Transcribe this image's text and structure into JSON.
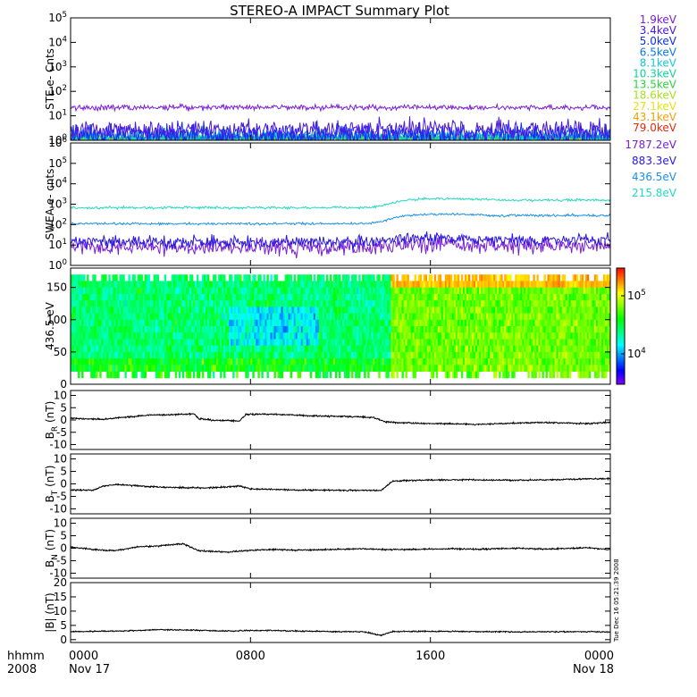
{
  "title": "STEREO-A IMPACT Summary Plot",
  "timestamp": "Tue Dec 16 05:21:39 2008",
  "xaxis": {
    "row1_label": "hhmm",
    "row2_label": "2008",
    "ticks": [
      {
        "hhmm": "0000",
        "date": "Nov 17",
        "frac": 0
      },
      {
        "hhmm": "0800",
        "date": "",
        "frac": 0.3333
      },
      {
        "hhmm": "1600",
        "date": "",
        "frac": 0.6667
      },
      {
        "hhmm": "0000",
        "date": "Nov 18",
        "frac": 1
      }
    ]
  },
  "colorbar": {
    "ticks": [
      {
        "label": "10^4",
        "value": 10000
      },
      {
        "label": "10^5",
        "value": 100000
      }
    ],
    "range": [
      3000,
      300000
    ]
  },
  "chart_data": [
    {
      "id": "ste",
      "type": "line",
      "ylabel": "STE e- Cnts",
      "yscale": "log",
      "ylim": [
        1,
        100000
      ],
      "yticks": [
        {
          "label": "10^0",
          "value": 1
        },
        {
          "label": "10^1",
          "value": 10
        },
        {
          "label": "10^2",
          "value": 100
        },
        {
          "label": "10^3",
          "value": 1000
        },
        {
          "label": "10^4",
          "value": 10000
        },
        {
          "label": "10^5",
          "value": 100000
        }
      ],
      "legend_position": "right",
      "series": [
        {
          "name": "1.9keV",
          "color": "#7a1ed8",
          "level": 22,
          "noise": 0.06
        },
        {
          "name": "3.4keV",
          "color": "#4a1ae0",
          "level": 2.5,
          "noise": 0.25
        },
        {
          "name": "5.0keV",
          "color": "#1030e8",
          "level": 1.6,
          "noise": 0.25
        },
        {
          "name": "6.5keV",
          "color": "#0a78e8",
          "level": 1.3,
          "noise": 0.2
        },
        {
          "name": "8.1keV",
          "color": "#16c8e0",
          "level": 1.1,
          "noise": 0.15
        },
        {
          "name": "10.3keV",
          "color": "#10d49a",
          "level": 1.05,
          "noise": 0.1
        },
        {
          "name": "13.5keV",
          "color": "#2cd43a",
          "level": 1.02,
          "noise": 0.08
        },
        {
          "name": "18.6keV",
          "color": "#a8e020",
          "level": 1.01,
          "noise": 0.05
        },
        {
          "name": "27.1keV",
          "color": "#e8e010",
          "level": 1.0,
          "noise": 0.03
        },
        {
          "name": "43.1keV",
          "color": "#f0a008",
          "level": 1.0,
          "noise": 0.02
        },
        {
          "name": "79.0keV",
          "color": "#e82808",
          "level": 1.0,
          "noise": 0.02
        }
      ]
    },
    {
      "id": "swea",
      "type": "line",
      "ylabel": "SWEA e- cnts",
      "yscale": "log",
      "ylim": [
        1,
        1000000
      ],
      "yticks": [
        {
          "label": "10^0",
          "value": 1
        },
        {
          "label": "10^1",
          "value": 10
        },
        {
          "label": "10^2",
          "value": 100
        },
        {
          "label": "10^3",
          "value": 1000
        },
        {
          "label": "10^4",
          "value": 10000
        },
        {
          "label": "10^5",
          "value": 100000
        },
        {
          "label": "10^6",
          "value": 1000000
        }
      ],
      "legend_position": "right",
      "series": [
        {
          "name": "1787.2eV",
          "color": "#7a1ed8",
          "before": 8,
          "after": 9,
          "noise": 0.35
        },
        {
          "name": "883.3eV",
          "color": "#2a18e0",
          "before": 14,
          "after": 18,
          "noise": 0.25
        },
        {
          "name": "436.5eV",
          "color": "#1a90e8",
          "before": 110,
          "after": 280,
          "noise": 0.05
        },
        {
          "name": "215.8eV",
          "color": "#22d8c0",
          "before": 680,
          "after": 1600,
          "noise": 0.05
        }
      ]
    },
    {
      "id": "pad",
      "type": "heatmap",
      "ylabel": "436.5 eV",
      "ylim": [
        0,
        180
      ],
      "yticks": [
        {
          "label": "0",
          "value": 0
        },
        {
          "label": "50",
          "value": 50
        },
        {
          "label": "100",
          "value": 100
        },
        {
          "label": "150",
          "value": 150
        }
      ],
      "zscale": "log",
      "zlim": [
        3000,
        300000
      ],
      "before": 25000,
      "after": 60000,
      "peak_after": 140000
    },
    {
      "id": "br",
      "type": "line",
      "ylabel": "BR (nT)",
      "ylim": [
        -12,
        12
      ],
      "yticks": [
        {
          "label": "10",
          "value": 10
        },
        {
          "label": "5",
          "value": 5
        },
        {
          "label": "0",
          "value": 0
        },
        {
          "label": "-5",
          "value": -5
        },
        {
          "label": "-10",
          "value": -10
        }
      ],
      "x": [
        0,
        0.5,
        1.5,
        2.5,
        3.5,
        4.5,
        5.5,
        5.7,
        6.5,
        7.0,
        7.5,
        7.8,
        8.5,
        9.5,
        10.5,
        11.5,
        12.5,
        13.5,
        14.0,
        15.0,
        16.0,
        17.0,
        18.0,
        19.0,
        20.0,
        21.0,
        22.0,
        23.0,
        24.0
      ],
      "values": [
        0.8,
        0.5,
        0.3,
        1.2,
        2.0,
        2.2,
        2.5,
        0.5,
        -0.2,
        -0.2,
        -0.5,
        2.3,
        2.4,
        2.2,
        1.8,
        1.5,
        1.4,
        1.0,
        -0.8,
        -1.2,
        -1.5,
        -1.5,
        -1.8,
        -1.5,
        -1.2,
        -1.0,
        -1.2,
        -1.5,
        -0.9
      ]
    },
    {
      "id": "bt",
      "type": "line",
      "ylabel": "BT (nT)",
      "ylim": [
        -12,
        12
      ],
      "yticks": [
        {
          "label": "10",
          "value": 10
        },
        {
          "label": "5",
          "value": 5
        },
        {
          "label": "0",
          "value": 0
        },
        {
          "label": "-5",
          "value": -5
        },
        {
          "label": "-10",
          "value": -10
        }
      ],
      "x": [
        0,
        1.0,
        1.5,
        2.0,
        3.0,
        4.0,
        5.0,
        6.0,
        7.0,
        7.5,
        8.0,
        9.0,
        10.0,
        11.0,
        12.0,
        13.0,
        13.8,
        14.3,
        15.0,
        16.0,
        17.0,
        18.0,
        19.0,
        20.0,
        21.0,
        22.0,
        23.0,
        24.0
      ],
      "values": [
        -2.5,
        -2.5,
        -0.8,
        -0.3,
        -0.8,
        -1.3,
        -1.5,
        -1.6,
        -1.2,
        -0.8,
        -2.0,
        -2.2,
        -2.5,
        -2.5,
        -2.6,
        -2.6,
        -2.6,
        1.0,
        1.4,
        1.5,
        1.6,
        1.6,
        1.5,
        1.5,
        1.6,
        1.8,
        2.0,
        2.1
      ]
    },
    {
      "id": "bn",
      "type": "line",
      "ylabel": "BN (nT)",
      "ylim": [
        -12,
        12
      ],
      "yticks": [
        {
          "label": "10",
          "value": 10
        },
        {
          "label": "5",
          "value": 5
        },
        {
          "label": "0",
          "value": 0
        },
        {
          "label": "-5",
          "value": -5
        },
        {
          "label": "-10",
          "value": -10
        }
      ],
      "x": [
        0,
        1.0,
        2.0,
        3.0,
        4.0,
        5.0,
        5.7,
        6.0,
        7.0,
        8.0,
        9.0,
        10.0,
        11.0,
        12.0,
        13.0,
        14.0,
        15.0,
        16.0,
        17.0,
        18.0,
        19.0,
        20.0,
        21.0,
        22.0,
        23.0,
        24.0
      ],
      "values": [
        0.5,
        -0.5,
        -1.0,
        0.5,
        1.0,
        1.8,
        -1.0,
        -1.2,
        -1.5,
        -0.8,
        -0.5,
        -0.8,
        -0.6,
        -0.4,
        -0.2,
        -0.5,
        -0.5,
        -0.3,
        -0.2,
        -0.4,
        -0.2,
        0.0,
        -0.3,
        -0.1,
        0.2,
        -0.6
      ]
    },
    {
      "id": "bmag",
      "type": "line",
      "ylabel": "|B| (nT)",
      "ylim": [
        -1,
        20
      ],
      "yticks": [
        {
          "label": "20",
          "value": 20
        },
        {
          "label": "15",
          "value": 15
        },
        {
          "label": "10",
          "value": 10
        },
        {
          "label": "5",
          "value": 5
        },
        {
          "label": "0",
          "value": 0
        }
      ],
      "x": [
        0,
        1.0,
        2.0,
        3.0,
        4.0,
        5.0,
        6.0,
        7.0,
        8.0,
        9.0,
        10.0,
        11.0,
        12.0,
        13.0,
        13.8,
        14.3,
        15.0,
        16.0,
        17.0,
        18.0,
        19.0,
        20.0,
        21.0,
        22.0,
        23.0,
        24.0
      ],
      "values": [
        2.8,
        2.9,
        3.0,
        3.2,
        3.5,
        3.4,
        3.2,
        3.0,
        3.2,
        3.2,
        3.0,
        2.9,
        2.8,
        2.8,
        1.5,
        2.8,
        2.9,
        2.9,
        2.9,
        2.8,
        2.8,
        2.7,
        2.8,
        2.8,
        2.8,
        2.7
      ]
    }
  ]
}
